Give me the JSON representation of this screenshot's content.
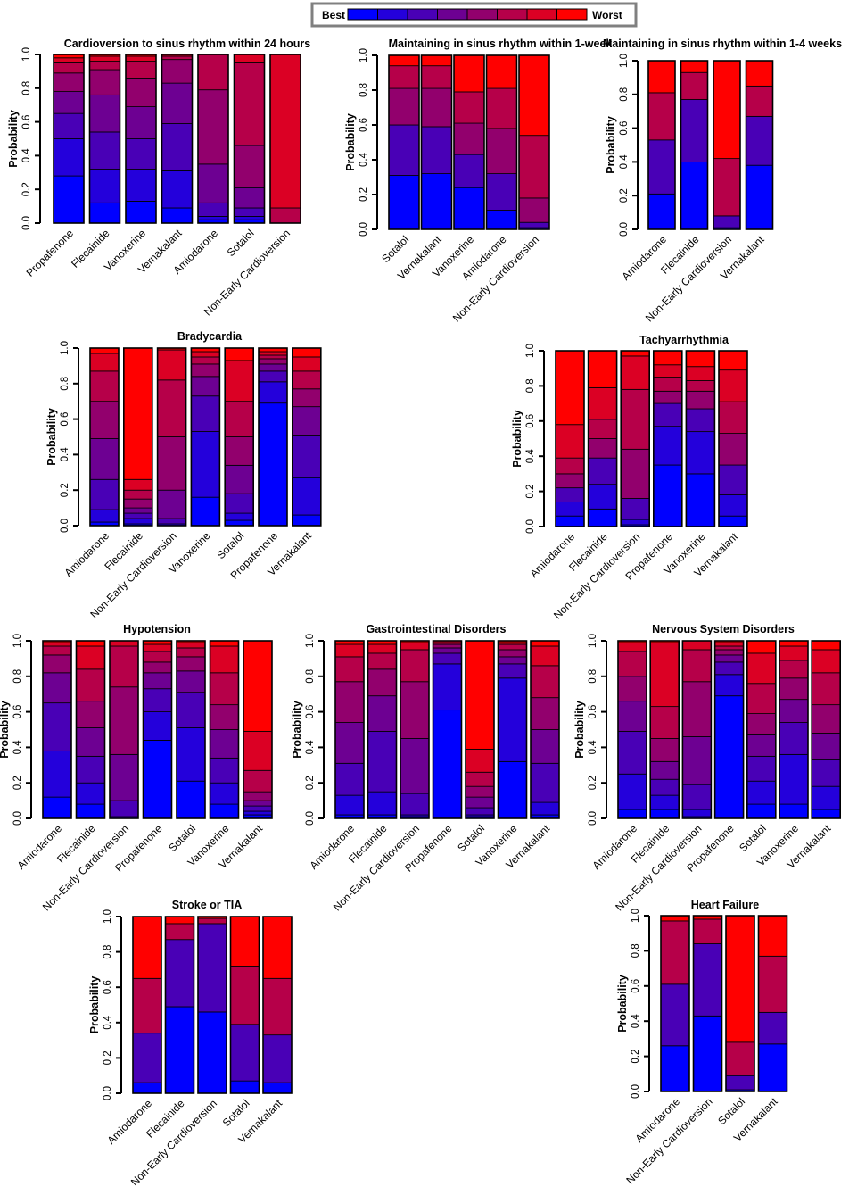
{
  "legend": {
    "best_label": "Best",
    "worst_label": "Worst",
    "colors": [
      "#0000ff",
      "#2400db",
      "#4900b6",
      "#6d0092",
      "#92006d",
      "#b60049",
      "#db0024",
      "#ff0000"
    ]
  },
  "chart_data": [
    {
      "id": "cardioversion",
      "type": "bar",
      "stacked": true,
      "title": "Cardioversion to sinus rhythm within 24 hours",
      "ylabel": "Probability",
      "ylim": [
        0,
        1
      ],
      "yticks": [
        "0.0",
        "0.2",
        "0.4",
        "0.6",
        "0.8",
        "1.0"
      ],
      "categories": [
        "Propafenone",
        "Flecainide",
        "Vanoxerine",
        "Vernakalant",
        "Amiodarone",
        "Sotalol",
        "Non-Early Cardioversion"
      ],
      "cumulative_boundaries": [
        [
          0.28,
          0.5,
          0.65,
          0.78,
          0.89,
          0.95,
          0.98
        ],
        [
          0.12,
          0.32,
          0.54,
          0.76,
          0.91,
          0.96,
          0.99
        ],
        [
          0.13,
          0.32,
          0.5,
          0.69,
          0.86,
          0.96,
          0.99
        ],
        [
          0.09,
          0.31,
          0.59,
          0.83,
          0.97,
          0.99,
          1.0
        ],
        [
          0.02,
          0.04,
          0.12,
          0.35,
          0.79,
          1.0,
          1.0
        ],
        [
          0.02,
          0.04,
          0.09,
          0.21,
          0.46,
          0.95,
          1.0
        ],
        [
          0.0,
          0.0,
          0.0,
          0.0,
          0.0,
          0.09,
          1.0
        ]
      ]
    },
    {
      "id": "maintain_1week",
      "type": "bar",
      "stacked": true,
      "title": "Maintaining in sinus rhythm  within 1-week",
      "ylabel": "Probability",
      "ylim": [
        0,
        1
      ],
      "yticks": [
        "0.0",
        "0.2",
        "0.4",
        "0.6",
        "0.8",
        "1.0"
      ],
      "categories": [
        "Sotalol",
        "Vernakalant",
        "Vanoxerine",
        "Amiodarone",
        "Non-Early Cardioversion"
      ],
      "cumulative_boundaries": [
        [
          0.31,
          0.6,
          0.81,
          0.94
        ],
        [
          0.32,
          0.59,
          0.81,
          0.94
        ],
        [
          0.24,
          0.43,
          0.61,
          0.79
        ],
        [
          0.11,
          0.32,
          0.58,
          0.81
        ],
        [
          0.01,
          0.04,
          0.18,
          0.54
        ]
      ]
    },
    {
      "id": "maintain_1_4weeks",
      "type": "bar",
      "stacked": true,
      "title": "Maintaining in sinus rhythm  within 1-4 weeks",
      "ylabel": "Probability",
      "ylim": [
        0,
        1
      ],
      "yticks": [
        "0.0",
        "0.2",
        "0.4",
        "0.6",
        "0.8",
        "1.0"
      ],
      "categories": [
        "Amiodarone",
        "Flecainide",
        "Non-Early Cardioversion",
        "Vernakalant"
      ],
      "cumulative_boundaries": [
        [
          0.21,
          0.53,
          0.81
        ],
        [
          0.4,
          0.77,
          0.93
        ],
        [
          0.01,
          0.08,
          0.42
        ],
        [
          0.38,
          0.67,
          0.85
        ]
      ]
    },
    {
      "id": "bradycardia",
      "type": "bar",
      "stacked": true,
      "title": "Bradycardia",
      "ylabel": "Probability",
      "ylim": [
        0,
        1
      ],
      "yticks": [
        "0.0",
        "0.2",
        "0.4",
        "0.6",
        "0.8",
        "1.0"
      ],
      "categories": [
        "Amiodarone",
        "Flecainide",
        "Non-Early Cardioversion",
        "Vanoxerine",
        "Sotalol",
        "Propafenone",
        "Vernakalant"
      ],
      "cumulative_boundaries": [
        [
          0.02,
          0.09,
          0.26,
          0.49,
          0.7,
          0.87,
          0.97
        ],
        [
          0.01,
          0.04,
          0.07,
          0.1,
          0.15,
          0.2,
          0.26
        ],
        [
          0.0,
          0.01,
          0.04,
          0.2,
          0.5,
          0.82,
          0.99
        ],
        [
          0.16,
          0.53,
          0.73,
          0.84,
          0.91,
          0.95,
          0.98
        ],
        [
          0.03,
          0.07,
          0.18,
          0.34,
          0.5,
          0.7,
          0.93
        ],
        [
          0.69,
          0.81,
          0.87,
          0.91,
          0.94,
          0.96,
          0.98
        ],
        [
          0.06,
          0.27,
          0.51,
          0.67,
          0.77,
          0.87,
          0.95
        ]
      ]
    },
    {
      "id": "tachyarrhythmia",
      "type": "bar",
      "stacked": true,
      "title": "Tachyarrhythmia",
      "ylabel": "Probability",
      "ylim": [
        0,
        1
      ],
      "yticks": [
        "0.0",
        "0.2",
        "0.4",
        "0.6",
        "0.8",
        "1.0"
      ],
      "categories": [
        "Amiodarone",
        "Flecainide",
        "Non-Early Cardioversion",
        "Propafenone",
        "Vanoxerine",
        "Vernakalant"
      ],
      "cumulative_boundaries": [
        [
          0.06,
          0.14,
          0.22,
          0.3,
          0.39,
          0.58
        ],
        [
          0.1,
          0.24,
          0.39,
          0.5,
          0.61,
          0.79
        ],
        [
          0.01,
          0.04,
          0.16,
          0.44,
          0.78,
          0.97
        ],
        [
          0.35,
          0.57,
          0.7,
          0.77,
          0.85,
          0.92
        ],
        [
          0.3,
          0.54,
          0.67,
          0.77,
          0.83,
          0.91
        ],
        [
          0.06,
          0.18,
          0.35,
          0.53,
          0.71,
          0.89
        ]
      ]
    },
    {
      "id": "hypotension",
      "type": "bar",
      "stacked": true,
      "title": "Hypotension",
      "ylabel": "Probability",
      "ylim": [
        0,
        1
      ],
      "yticks": [
        "0.0",
        "0.2",
        "0.4",
        "0.6",
        "0.8",
        "1.0"
      ],
      "categories": [
        "Amiodarone",
        "Flecainide",
        "Non-Early Cardioversion",
        "Propafenone",
        "Sotalol",
        "Vanoxerine",
        "Vernakalant"
      ],
      "cumulative_boundaries": [
        [
          0.12,
          0.38,
          0.65,
          0.82,
          0.92,
          0.97,
          0.99
        ],
        [
          0.08,
          0.2,
          0.35,
          0.51,
          0.66,
          0.84,
          0.97
        ],
        [
          0.0,
          0.01,
          0.1,
          0.36,
          0.74,
          0.97,
          1.0
        ],
        [
          0.44,
          0.6,
          0.73,
          0.82,
          0.88,
          0.94,
          0.98
        ],
        [
          0.21,
          0.51,
          0.71,
          0.83,
          0.91,
          0.96,
          0.99
        ],
        [
          0.08,
          0.2,
          0.34,
          0.5,
          0.64,
          0.82,
          0.97
        ],
        [
          0.02,
          0.04,
          0.07,
          0.1,
          0.15,
          0.27,
          0.49
        ]
      ]
    },
    {
      "id": "gastrointestinal",
      "type": "bar",
      "stacked": true,
      "title": "Gastrointestinal Disorders",
      "ylabel": "Probability",
      "ylim": [
        0,
        1
      ],
      "yticks": [
        "0.0",
        "0.2",
        "0.4",
        "0.6",
        "0.8",
        "1.0"
      ],
      "categories": [
        "Amiodarone",
        "Flecainide",
        "Non-Early Cardioversion",
        "Propafenone",
        "Sotalol",
        "Vanoxerine",
        "Vernakalant"
      ],
      "cumulative_boundaries": [
        [
          0.02,
          0.13,
          0.31,
          0.54,
          0.77,
          0.91,
          0.98
        ],
        [
          0.02,
          0.15,
          0.49,
          0.69,
          0.84,
          0.93,
          0.98
        ],
        [
          0.01,
          0.02,
          0.14,
          0.45,
          0.77,
          0.95,
          0.99
        ],
        [
          0.61,
          0.87,
          0.93,
          0.96,
          0.98,
          0.99,
          1.0
        ],
        [
          0.01,
          0.02,
          0.06,
          0.12,
          0.18,
          0.26,
          0.39
        ],
        [
          0.32,
          0.79,
          0.87,
          0.91,
          0.95,
          0.98,
          0.99
        ],
        [
          0.02,
          0.09,
          0.31,
          0.5,
          0.68,
          0.86,
          0.97
        ]
      ]
    },
    {
      "id": "nervous_system",
      "type": "bar",
      "stacked": true,
      "title": "Nervous System Disorders",
      "ylabel": "Probability",
      "ylim": [
        0,
        1
      ],
      "yticks": [
        "0.0",
        "0.2",
        "0.4",
        "0.6",
        "0.8",
        "1.0"
      ],
      "categories": [
        "Amiodarone",
        "Flecainide",
        "Non-Early Cardioversion",
        "Propafenone",
        "Sotalol",
        "Vanoxerine",
        "Vernakalant"
      ],
      "cumulative_boundaries": [
        [
          0.05,
          0.25,
          0.49,
          0.66,
          0.8,
          0.94,
          0.99
        ],
        [
          0.05,
          0.13,
          0.22,
          0.32,
          0.45,
          0.63,
          0.99
        ],
        [
          0.01,
          0.05,
          0.19,
          0.46,
          0.77,
          0.95,
          1.0
        ],
        [
          0.69,
          0.81,
          0.88,
          0.92,
          0.95,
          0.97,
          0.99
        ],
        [
          0.08,
          0.21,
          0.35,
          0.47,
          0.59,
          0.76,
          0.93
        ],
        [
          0.08,
          0.36,
          0.54,
          0.67,
          0.79,
          0.89,
          0.97
        ],
        [
          0.05,
          0.18,
          0.33,
          0.48,
          0.64,
          0.82,
          0.95
        ]
      ]
    },
    {
      "id": "stroke_tia",
      "type": "bar",
      "stacked": true,
      "title": "Stroke or TIA",
      "ylabel": "Probability",
      "ylim": [
        0,
        1
      ],
      "yticks": [
        "0.0",
        "0.2",
        "0.4",
        "0.6",
        "0.8",
        "1.0"
      ],
      "categories": [
        "Amiodarone",
        "Flecainide",
        "Non-Early Cardioversion",
        "Sotalol",
        "Vernakalant"
      ],
      "cumulative_boundaries": [
        [
          0.06,
          0.34,
          0.65
        ],
        [
          0.49,
          0.87,
          0.96
        ],
        [
          0.46,
          0.96,
          0.99
        ],
        [
          0.07,
          0.39,
          0.72
        ],
        [
          0.06,
          0.33,
          0.65
        ]
      ]
    },
    {
      "id": "heart_failure",
      "type": "bar",
      "stacked": true,
      "title": "Heart Failure",
      "ylabel": "Probability",
      "ylim": [
        0,
        1
      ],
      "yticks": [
        "0.0",
        "0.2",
        "0.4",
        "0.6",
        "0.8",
        "1.0"
      ],
      "categories": [
        "Amiodarone",
        "Non-Early Cardioversion",
        "Sotalol",
        "Vernakalant"
      ],
      "cumulative_boundaries": [
        [
          0.26,
          0.61,
          0.97
        ],
        [
          0.43,
          0.84,
          0.98
        ],
        [
          0.01,
          0.09,
          0.28
        ],
        [
          0.27,
          0.45,
          0.77
        ]
      ]
    }
  ]
}
